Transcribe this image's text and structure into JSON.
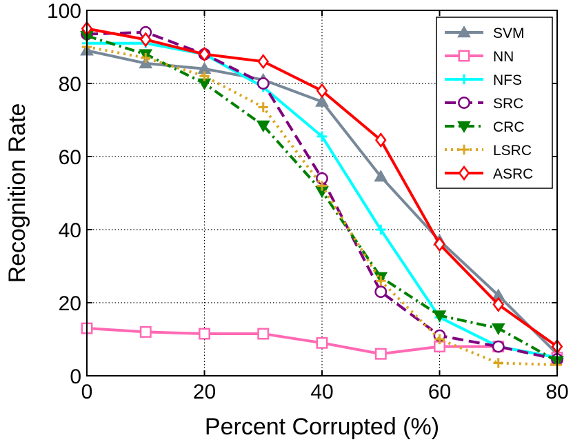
{
  "chart_data": {
    "type": "line",
    "title": "",
    "xlabel": "Percent Corrupted (%)",
    "ylabel": "Recognition Rate",
    "x": [
      0,
      10,
      20,
      30,
      40,
      50,
      60,
      70,
      80
    ],
    "xlim": [
      0,
      80
    ],
    "ylim": [
      0,
      100
    ],
    "xticks": [
      "0",
      "20",
      "40",
      "60",
      "80"
    ],
    "yticks": [
      "0",
      "20",
      "40",
      "60",
      "80",
      "100"
    ],
    "grid": "dotted",
    "legend_position": "top-right",
    "series": [
      {
        "name": "SVM",
        "color": "#778899",
        "marker": "triangle-up",
        "line": "solid",
        "values": [
          89,
          85.5,
          84,
          81,
          75,
          54.5,
          37,
          22,
          6
        ]
      },
      {
        "name": "NN",
        "color": "#ff69b4",
        "marker": "square",
        "line": "solid",
        "values": [
          13,
          12,
          11.5,
          11.5,
          9,
          6,
          8,
          8,
          5
        ]
      },
      {
        "name": "NFS",
        "color": "#00ffff",
        "marker": "plus",
        "line": "solid",
        "values": [
          91,
          91,
          88,
          79,
          65.5,
          40,
          16,
          8,
          5
        ]
      },
      {
        "name": "SRC",
        "color": "#800080",
        "marker": "circle",
        "line": "dashed",
        "values": [
          93.5,
          94,
          88,
          80,
          54,
          23,
          11,
          8,
          4.5
        ]
      },
      {
        "name": "CRC",
        "color": "#008000",
        "marker": "triangle-down",
        "line": "dashdot",
        "values": [
          93,
          88,
          80,
          68.5,
          50.5,
          27,
          16.5,
          13,
          4
        ]
      },
      {
        "name": "LSRC",
        "color": "#daa520",
        "marker": "plus",
        "line": "dotted",
        "values": [
          90,
          87,
          82,
          73.5,
          52,
          26,
          10,
          3.5,
          3
        ]
      },
      {
        "name": "ASRC",
        "color": "#ff0000",
        "marker": "diamond",
        "line": "solid",
        "values": [
          95,
          92,
          88,
          86,
          78,
          64.5,
          36,
          19.5,
          8
        ]
      }
    ]
  }
}
